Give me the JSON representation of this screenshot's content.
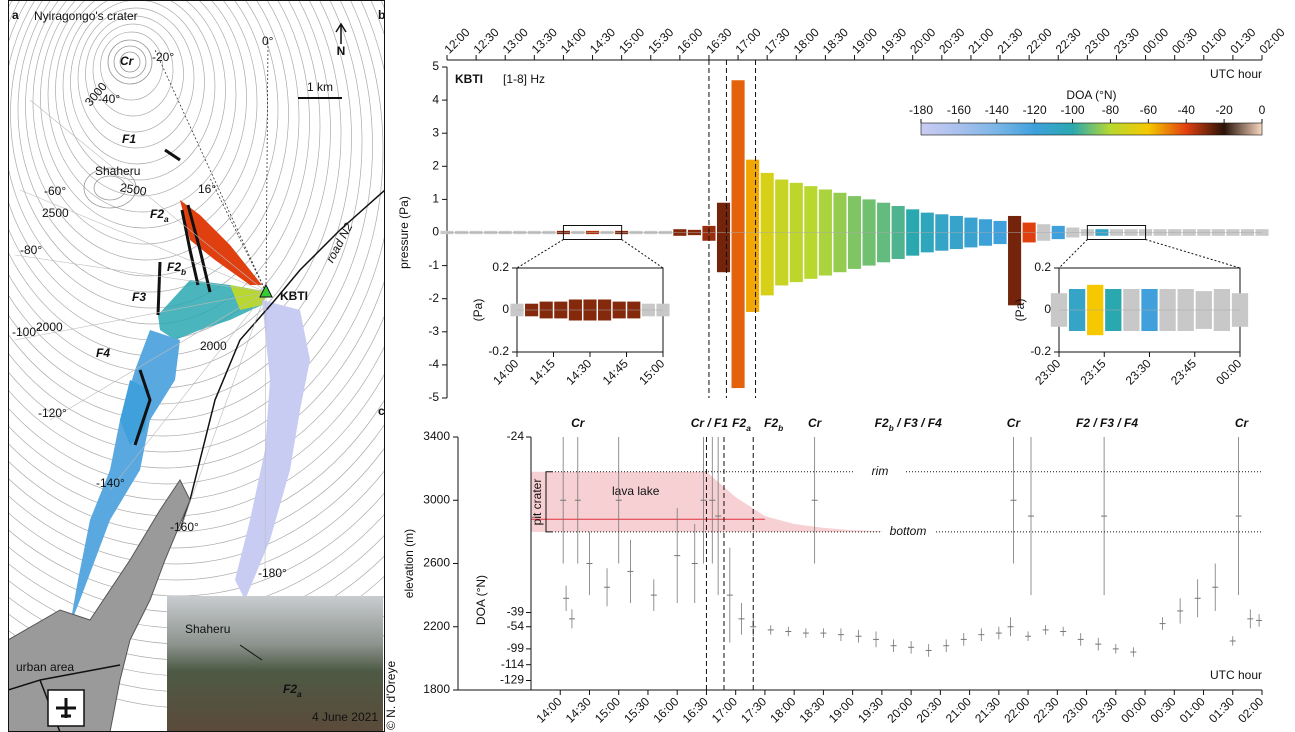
{
  "map": {
    "panel": "a",
    "title": "Nyiragongo's crater",
    "crater": "Cr",
    "north": "N",
    "scale": "1 km",
    "angles": [
      "-20°",
      "0°",
      "-40°",
      "-60°",
      "-80°",
      "-100°",
      "-120°",
      "-140°",
      "-160°",
      "-180°"
    ],
    "contours": [
      "3000",
      "2500",
      "2500",
      "2000",
      "2000"
    ],
    "fissures": [
      {
        "text": "F1"
      },
      {
        "text": "F2",
        "sub": "a"
      },
      {
        "text": "F2",
        "sub": "b"
      },
      {
        "text": "F3"
      },
      {
        "text": "F4"
      }
    ],
    "shaheru": "Shaheru",
    "angle": "16°",
    "station": "KBTI",
    "road": "road N2",
    "urban": "urban area",
    "photo": {
      "place": "Shaheru",
      "fissure": {
        "text": "F2",
        "sub": "a"
      },
      "date": "4 June 2021"
    },
    "credit": "© N. d'Oreye"
  },
  "chart_data": [
    {
      "type": "envelope",
      "panel": "b",
      "title": "KBTI",
      "subtitle": "[1-8] Hz",
      "ylabel": "pressure (Pa)",
      "xlabel": "UTC hour",
      "x": [
        12,
        12.25,
        12.5,
        12.75,
        13,
        13.25,
        13.5,
        13.75,
        14,
        14.25,
        14.5,
        14.75,
        15,
        15.25,
        15.5,
        15.75,
        16,
        16.25,
        16.5,
        16.75,
        17,
        17.25,
        17.5,
        17.75,
        18,
        18.25,
        18.5,
        18.75,
        19,
        19.25,
        19.5,
        19.75,
        20,
        20.25,
        20.5,
        20.75,
        21,
        21.25,
        21.5,
        21.75,
        22,
        22.25,
        22.5,
        22.75,
        23,
        23.25,
        23.5,
        23.75,
        24,
        24.25,
        24.5,
        24.75,
        25,
        25.25,
        25.5,
        25.75,
        26
      ],
      "upper": [
        0.05,
        0.05,
        0.05,
        0.05,
        0.05,
        0.05,
        0.05,
        0.05,
        0.05,
        0.05,
        0.05,
        0.05,
        0.05,
        0.05,
        0.05,
        0.05,
        0.1,
        0.08,
        0.2,
        0.9,
        4.6,
        2.2,
        1.8,
        1.6,
        1.5,
        1.4,
        1.3,
        1.2,
        1.1,
        1.0,
        0.9,
        0.8,
        0.7,
        0.6,
        0.55,
        0.5,
        0.45,
        0.4,
        0.35,
        0.5,
        0.3,
        0.25,
        0.2,
        0.15,
        0.1,
        0.1,
        0.1,
        0.1,
        0.1,
        0.1,
        0.1,
        0.1,
        0.1,
        0.1,
        0.1,
        0.1,
        0.1
      ],
      "lower": [
        -0.05,
        -0.05,
        -0.05,
        -0.05,
        -0.05,
        -0.05,
        -0.05,
        -0.05,
        -0.05,
        -0.05,
        -0.05,
        -0.05,
        -0.05,
        -0.05,
        -0.05,
        -0.05,
        -0.1,
        -0.08,
        -0.25,
        -1.2,
        -4.7,
        -2.4,
        -1.9,
        -1.6,
        -1.5,
        -1.4,
        -1.3,
        -1.2,
        -1.1,
        -1.0,
        -0.9,
        -0.8,
        -0.7,
        -0.6,
        -0.55,
        -0.5,
        -0.45,
        -0.4,
        -0.35,
        -2.2,
        -0.3,
        -0.25,
        -0.2,
        -0.15,
        -0.1,
        -0.1,
        -0.1,
        -0.1,
        -0.1,
        -0.1,
        -0.1,
        -0.1,
        -0.1,
        -0.1,
        -0.1,
        -0.1,
        -0.1
      ],
      "doa": [
        null,
        null,
        null,
        null,
        null,
        null,
        null,
        null,
        -30,
        null,
        -35,
        null,
        -30,
        null,
        null,
        null,
        -30,
        -30,
        -32,
        -28,
        -45,
        -55,
        -70,
        -75,
        -78,
        -80,
        -82,
        -85,
        -88,
        -90,
        -92,
        -95,
        -100,
        -105,
        -110,
        -112,
        -115,
        -118,
        -120,
        -28,
        -40,
        null,
        -120,
        null,
        null,
        -110,
        null,
        null,
        null,
        null,
        null,
        null,
        null,
        null,
        null,
        null,
        null
      ],
      "null_color": "#c8c8c8",
      "xlim": [
        12,
        26
      ],
      "xticks": [
        {
          "value": 12,
          "label": "12:00"
        },
        {
          "value": 12.5,
          "label": "12:30"
        },
        {
          "value": 13,
          "label": "13:00"
        },
        {
          "value": 13.5,
          "label": "13:30"
        },
        {
          "value": 14,
          "label": "14:00"
        },
        {
          "value": 14.5,
          "label": "14:30"
        },
        {
          "value": 15,
          "label": "15:00"
        },
        {
          "value": 15.5,
          "label": "15:30"
        },
        {
          "value": 16,
          "label": "16:00"
        },
        {
          "value": 16.5,
          "label": "16:30"
        },
        {
          "value": 17,
          "label": "17:00"
        },
        {
          "value": 17.5,
          "label": "17:30"
        },
        {
          "value": 18,
          "label": "18:00"
        },
        {
          "value": 18.5,
          "label": "18:30"
        },
        {
          "value": 19,
          "label": "19:00"
        },
        {
          "value": 19.5,
          "label": "19:30"
        },
        {
          "value": 20,
          "label": "20:00"
        },
        {
          "value": 20.5,
          "label": "20:30"
        },
        {
          "value": 21,
          "label": "21:00"
        },
        {
          "value": 21.5,
          "label": "21:30"
        },
        {
          "value": 22,
          "label": "22:00"
        },
        {
          "value": 22.5,
          "label": "22:30"
        },
        {
          "value": 23,
          "label": "23:00"
        },
        {
          "value": 23.5,
          "label": "23:30"
        },
        {
          "value": 24,
          "label": "00:00"
        },
        {
          "value": 24.5,
          "label": "00:30"
        },
        {
          "value": 25,
          "label": "01:00"
        },
        {
          "value": 25.5,
          "label": "01:30"
        },
        {
          "value": 26,
          "label": "02:00"
        }
      ],
      "ylim": [
        -5,
        5
      ],
      "yticks": [
        -5,
        -4,
        -3,
        -2,
        -1,
        0,
        1,
        2,
        3,
        4,
        5
      ],
      "vlines": [
        16.5,
        16.8,
        17.3
      ],
      "colorbar": {
        "label": "DOA (°N)",
        "ticks": [
          -180,
          -160,
          -140,
          -120,
          -100,
          -80,
          -60,
          -40,
          -20,
          0
        ],
        "colors": [
          "#c9ccf2",
          "#a9c0ee",
          "#7ab6e6",
          "#3fa0dc",
          "#2aa8b0",
          "#b8d830",
          "#f5c800",
          "#e04010",
          "#2a1208",
          "#f8d8c0"
        ]
      }
    },
    {
      "type": "envelope",
      "panel": "inset",
      "ylabel": "(Pa)",
      "x": [
        14,
        14.1,
        14.2,
        14.3,
        14.4,
        14.5,
        14.6,
        14.7,
        14.8,
        14.9,
        15
      ],
      "upper": [
        0.03,
        0.03,
        0.04,
        0.04,
        0.05,
        0.05,
        0.05,
        0.04,
        0.04,
        0.03,
        0.03
      ],
      "lower": [
        -0.03,
        -0.03,
        -0.04,
        -0.04,
        -0.05,
        -0.05,
        -0.05,
        -0.04,
        -0.04,
        -0.03,
        -0.03
      ],
      "doa": [
        null,
        -30,
        -30,
        -30,
        -30,
        -30,
        -30,
        -30,
        -30,
        null,
        null
      ],
      "null_color": "#c8c8c8",
      "xlim": [
        14,
        15
      ],
      "xticks": [
        {
          "value": 14,
          "label": "14:00"
        },
        {
          "value": 14.25,
          "label": "14:15"
        },
        {
          "value": 14.5,
          "label": "14:30"
        },
        {
          "value": 14.75,
          "label": "14:45"
        },
        {
          "value": 15,
          "label": "15:00"
        }
      ],
      "ylim": [
        -0.2,
        0.2
      ],
      "yticks": [
        -0.2,
        0,
        0.2
      ]
    },
    {
      "type": "envelope",
      "panel": "inset",
      "ylabel": "(Pa)",
      "x": [
        23,
        23.1,
        23.2,
        23.3,
        23.4,
        23.5,
        23.6,
        23.7,
        23.8,
        23.9,
        24
      ],
      "upper": [
        0.08,
        0.1,
        0.12,
        0.1,
        0.1,
        0.1,
        0.1,
        0.1,
        0.09,
        0.1,
        0.08
      ],
      "lower": [
        -0.08,
        -0.1,
        -0.12,
        -0.1,
        -0.1,
        -0.1,
        -0.1,
        -0.1,
        -0.09,
        -0.1,
        -0.08
      ],
      "doa": [
        null,
        -110,
        -60,
        -100,
        null,
        -120,
        null,
        null,
        null,
        null,
        null
      ],
      "null_color": "#c8c8c8",
      "xlim": [
        23,
        24
      ],
      "xticks": [
        {
          "value": 23,
          "label": "23:00"
        },
        {
          "value": 23.25,
          "label": "23:15"
        },
        {
          "value": 23.5,
          "label": "23:30"
        },
        {
          "value": 23.75,
          "label": "23:45"
        },
        {
          "value": 24,
          "label": "00:00"
        }
      ],
      "ylim": [
        -0.2,
        0.2
      ],
      "yticks": [
        -0.2,
        0,
        0.2
      ]
    },
    {
      "type": "scatter",
      "panel": "c",
      "ylabel": "elevation (m)",
      "xlabel": "UTC hour",
      "color": "#777777",
      "x": [
        14.05,
        14.1,
        14.2,
        14.3,
        14.5,
        14.8,
        15.0,
        15.2,
        15.6,
        16.0,
        16.3,
        16.45,
        16.6,
        16.7,
        16.9,
        17.1,
        17.3,
        17.6,
        17.9,
        18.2,
        18.35,
        18.5,
        18.8,
        19.1,
        19.4,
        19.7,
        20.0,
        20.3,
        20.6,
        20.9,
        21.2,
        21.5,
        21.7,
        21.75,
        22.0,
        22.05,
        22.3,
        22.6,
        22.9,
        23.2,
        23.3,
        23.5,
        23.8,
        24.3,
        24.6,
        24.9,
        25.2,
        25.5,
        25.6,
        25.8,
        25.95
      ],
      "values": [
        3000,
        2380,
        2250,
        3000,
        2600,
        2450,
        3000,
        2550,
        2400,
        2650,
        2600,
        3000,
        3000,
        2900,
        2400,
        2250,
        2200,
        2180,
        2170,
        2160,
        3000,
        2160,
        2150,
        2140,
        2120,
        2080,
        2070,
        2050,
        2080,
        2120,
        2150,
        2160,
        2200,
        3000,
        2140,
        2900,
        2180,
        2170,
        2120,
        2090,
        2900,
        2060,
        2040,
        2220,
        2300,
        2380,
        2450,
        2110,
        2900,
        2250,
        2240
      ],
      "err": [
        400,
        80,
        60,
        400,
        200,
        120,
        400,
        200,
        100,
        300,
        250,
        400,
        400,
        500,
        300,
        100,
        60,
        30,
        30,
        30,
        400,
        30,
        40,
        40,
        50,
        40,
        40,
        40,
        40,
        40,
        40,
        40,
        60,
        400,
        30,
        500,
        30,
        30,
        40,
        40,
        500,
        30,
        30,
        40,
        80,
        120,
        150,
        30,
        500,
        60,
        40
      ],
      "xlim": [
        13.5,
        26
      ],
      "xticks": [
        {
          "value": 14,
          "label": "14:00"
        },
        {
          "value": 14.5,
          "label": "14:30"
        },
        {
          "value": 15,
          "label": "15:00"
        },
        {
          "value": 15.5,
          "label": "15:30"
        },
        {
          "value": 16,
          "label": "16:00"
        },
        {
          "value": 16.5,
          "label": "16:30"
        },
        {
          "value": 17,
          "label": "17:00"
        },
        {
          "value": 17.5,
          "label": "17:30"
        },
        {
          "value": 18,
          "label": "18:00"
        },
        {
          "value": 18.5,
          "label": "18:30"
        },
        {
          "value": 19,
          "label": "19:00"
        },
        {
          "value": 19.5,
          "label": "19:30"
        },
        {
          "value": 20,
          "label": "20:00"
        },
        {
          "value": 20.5,
          "label": "20:30"
        },
        {
          "value": 21,
          "label": "21:00"
        },
        {
          "value": 21.5,
          "label": "21:30"
        },
        {
          "value": 22,
          "label": "22:00"
        },
        {
          "value": 22.5,
          "label": "22:30"
        },
        {
          "value": 23,
          "label": "23:00"
        },
        {
          "value": 23.5,
          "label": "23:30"
        },
        {
          "value": 24,
          "label": "00:00"
        },
        {
          "value": 24.5,
          "label": "00:30"
        },
        {
          "value": 25,
          "label": "01:00"
        },
        {
          "value": 25.5,
          "label": "01:30"
        },
        {
          "value": 26,
          "label": "02:00"
        }
      ],
      "ylim": [
        1800,
        3400
      ],
      "yticks": [
        1800,
        2200,
        2600,
        3000,
        3400
      ],
      "doa_axis": {
        "label": "DOA (°N)",
        "ticks": [
          -24,
          -39,
          -54,
          -99,
          -114,
          -129
        ],
        "tick_elevation": [
          3400,
          2290,
          2200,
          2060,
          1960,
          1860
        ]
      },
      "vlines": [
        16.5,
        16.8,
        17.3
      ],
      "levels": [
        {
          "label": "rim",
          "value": 3180
        },
        {
          "label": "bottom",
          "value": 2800
        }
      ],
      "pit": "pit crater",
      "lava_lake": {
        "label": "lava lake",
        "level": 2880,
        "surface_x": [
          13.5,
          16.5,
          17,
          17.5,
          18,
          18.5,
          19,
          19.5
        ],
        "surface_y": [
          3180,
          3180,
          3020,
          2900,
          2850,
          2825,
          2810,
          2805
        ]
      },
      "phases": [
        {
          "text": "Cr",
          "x": 14.3
        },
        {
          "text": "Cr / F1",
          "x": 16.55
        },
        {
          "text": "F2",
          "sub": "a",
          "x": 17.1
        },
        {
          "text": "F2",
          "sub": "b",
          "x": 17.65
        },
        {
          "text": "Cr",
          "x": 18.35
        },
        {
          "text": "F2",
          "sub": "b",
          "rest": " / F3 / F4",
          "x": 19.95
        },
        {
          "text": "Cr",
          "x": 21.75
        },
        {
          "text": "F2 / F3 / F4",
          "x": 23.35
        },
        {
          "text": "Cr",
          "x": 25.65
        }
      ]
    }
  ]
}
